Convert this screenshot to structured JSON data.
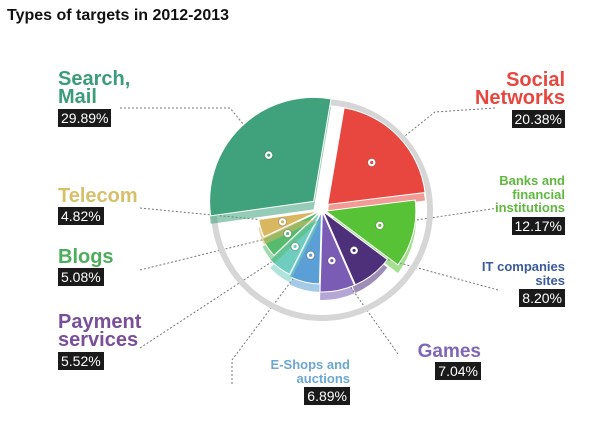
{
  "chart_data": {
    "type": "pie",
    "title": "Types of targets in 2012-2013",
    "slices": [
      {
        "label": "Search, Mail",
        "value": 29.89,
        "value_label": "29.89%",
        "color": "#3fa27c"
      },
      {
        "label": "Social Networks",
        "value": 20.38,
        "value_label": "20.38%",
        "color": "#e8473f"
      },
      {
        "label": "Banks and financial institutions",
        "value": 12.17,
        "value_label": "12.17%",
        "color": "#58c236"
      },
      {
        "label": "IT companies sites",
        "value": 8.2,
        "value_label": "8.20%",
        "color": "#4e2f7a"
      },
      {
        "label": "Games",
        "value": 7.04,
        "value_label": "7.04%",
        "color": "#7a5cb5"
      },
      {
        "label": "E-Shops and auctions",
        "value": 6.89,
        "value_label": "6.89%",
        "color": "#5b9fd6"
      },
      {
        "label": "Payment services",
        "value": 5.52,
        "value_label": "5.52%",
        "color": "#6ecdbf"
      },
      {
        "label": "Blogs",
        "value": 5.08,
        "value_label": "5.08%",
        "color": "#56bb6c"
      },
      {
        "label": "Telecom",
        "value": 4.82,
        "value_label": "4.82%",
        "color": "#d9b760"
      }
    ]
  },
  "labels": {
    "search_name": "Search, Mail",
    "social_name": "Social Networks",
    "banks_name": "Banks and financial institutions",
    "it_name": "IT companies sites",
    "games_name": "Games",
    "eshops_name": "E-Shops and auctions",
    "payment_name": "Payment services",
    "blogs_name": "Blogs",
    "telecom_name": "Telecom"
  },
  "colors": {
    "search": "#3a9c78",
    "social": "#e8473f",
    "banks": "#5fb93f",
    "it": "#3a5a9a",
    "games": "#7e66b8",
    "eshops": "#6aa7d2",
    "payment": "#7a4f9a",
    "blogs": "#4cae5c",
    "telecom": "#d8bf6a"
  }
}
